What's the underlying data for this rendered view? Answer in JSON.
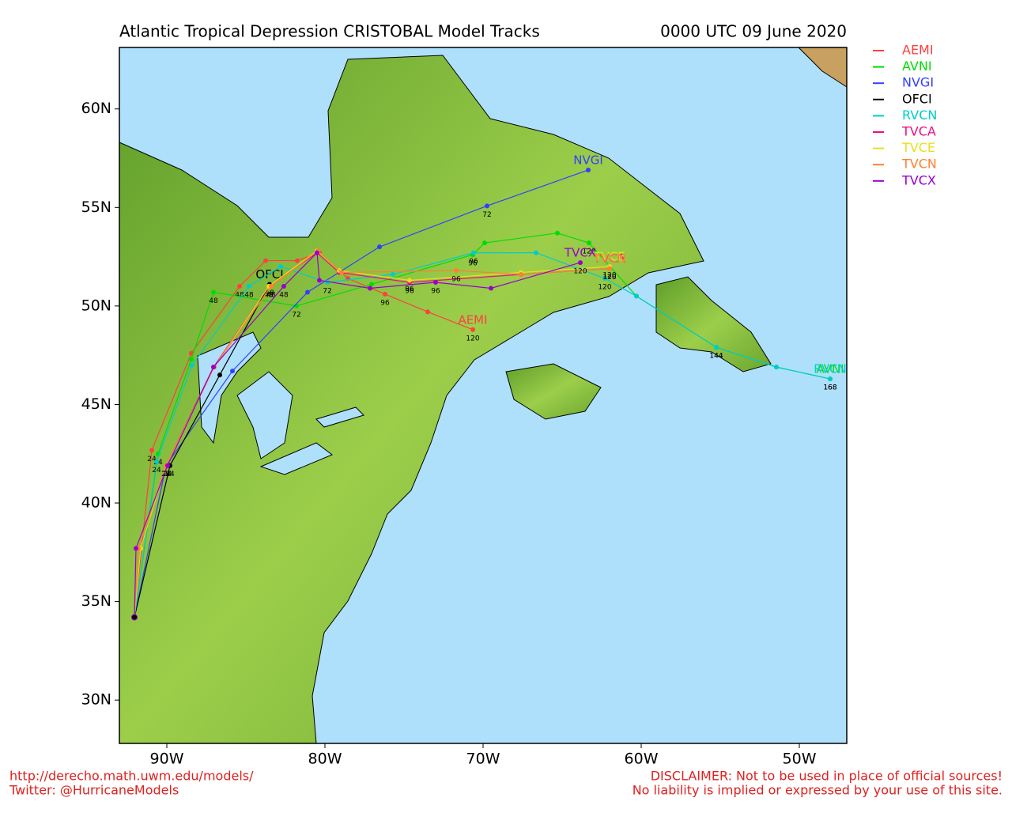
{
  "chart_data": {
    "type": "map",
    "title": "Atlantic Tropical Depression CRISTOBAL Model Tracks",
    "subtitle": "0000 UTC 09 June 2020",
    "xlim": [
      -93,
      -47
    ],
    "ylim": [
      27.8,
      63.12
    ],
    "xticks": [
      {
        "value": -90,
        "label": "90W"
      },
      {
        "value": -80,
        "label": "80W"
      },
      {
        "value": -70,
        "label": "70W"
      },
      {
        "value": -60,
        "label": "60W"
      },
      {
        "value": -50,
        "label": "50W"
      }
    ],
    "yticks": [
      {
        "value": 30,
        "label": "30N"
      },
      {
        "value": 35,
        "label": "35N"
      },
      {
        "value": 40,
        "label": "40N"
      },
      {
        "value": 45,
        "label": "45N"
      },
      {
        "value": 50,
        "label": "50N"
      },
      {
        "value": 55,
        "label": "55N"
      },
      {
        "value": 60,
        "label": "60N"
      }
    ],
    "series": [
      {
        "name": "AEMI",
        "color": "#ff4040",
        "lon": [
          -92.05,
          -90.95,
          -88.45,
          -85.4,
          -83.75,
          -81.75,
          -80.35,
          -78.55,
          -76.2,
          -73.5,
          -70.65
        ],
        "lat": [
          34.2,
          42.68,
          47.6,
          51.0,
          52.3,
          52.3,
          52.7,
          51.4,
          50.6,
          49.7,
          48.8
        ],
        "hours": [
          null,
          24,
          null,
          48,
          null,
          null,
          null,
          null,
          96,
          null,
          120
        ]
      },
      {
        "name": "AVNI",
        "color": "#00dd00",
        "lon": [
          -92.05,
          -90.55,
          -88.45,
          -87.05,
          -81.8,
          -77.05,
          -70.65,
          -69.9,
          -65.3,
          -63.3,
          -60.3,
          -55.25,
          -51.45,
          -48.05
        ],
        "lat": [
          34.2,
          42.5,
          47.3,
          50.7,
          50.0,
          51.1,
          52.6,
          53.2,
          53.7,
          53.2,
          50.5,
          47.9,
          46.9,
          46.3
        ],
        "hours": [
          null,
          24,
          null,
          48,
          72,
          null,
          96,
          null,
          null,
          120,
          null,
          144,
          null,
          168
        ]
      },
      {
        "name": "NVGI",
        "color": "#3040ff",
        "lon": [
          -92.05,
          -90.05,
          -85.85,
          -81.1,
          -76.55,
          -69.75,
          -63.35
        ],
        "lat": [
          34.2,
          41.9,
          46.7,
          50.7,
          53.0,
          55.08,
          56.9
        ],
        "hours": [
          null,
          24,
          null,
          null,
          null,
          72,
          null
        ]
      },
      {
        "name": "OFCI",
        "color": "#000000",
        "lon": [
          -92.05,
          -89.8,
          -86.65,
          -83.5
        ],
        "lat": [
          34.2,
          41.9,
          46.5,
          51.1
        ],
        "hours": [
          null,
          24,
          null,
          48
        ]
      },
      {
        "name": "RVCN",
        "color": "#00cccc",
        "lon": [
          -92.05,
          -90.65,
          -88.4,
          -84.8,
          -82.8,
          -79.85,
          -75.7,
          -70.6,
          -66.65,
          -62.3,
          -60.3,
          -55.25,
          -51.45,
          -48.05
        ],
        "lat": [
          34.2,
          42.1,
          47.0,
          51.0,
          52.0,
          51.2,
          51.6,
          52.7,
          52.7,
          51.4,
          50.5,
          47.9,
          46.9,
          46.3
        ],
        "hours": [
          null,
          24,
          null,
          48,
          null,
          72,
          null,
          96,
          null,
          120,
          null,
          144,
          null,
          168
        ]
      },
      {
        "name": "TVCA",
        "color": "#ee1080",
        "lon": [
          -92.05,
          -91.65,
          -90.05,
          -87.05,
          -83.55,
          -80.5,
          -79.1,
          -74.65,
          -67.6,
          -62.0
        ],
        "lat": [
          34.2,
          37.7,
          41.9,
          46.9,
          51.0,
          52.7,
          51.7,
          51.2,
          51.6,
          51.9
        ],
        "hours": [
          null,
          null,
          24,
          null,
          48,
          null,
          null,
          96,
          null,
          120
        ]
      },
      {
        "name": "TVCE",
        "color": "#e6e020",
        "lon": [
          -92.05,
          -91.65,
          -90.05,
          -87.0,
          -83.55,
          -80.5,
          -79.1,
          -74.65,
          -67.6,
          -62.0
        ],
        "lat": [
          34.2,
          37.7,
          41.9,
          46.9,
          51.0,
          52.8,
          51.8,
          51.3,
          51.7,
          52.0
        ],
        "hours": [
          null,
          null,
          24,
          null,
          48,
          null,
          null,
          96,
          null,
          120
        ]
      },
      {
        "name": "TVCN",
        "color": "#ff8030",
        "lon": [
          -92.05,
          -91.8,
          -90.05,
          -87.0,
          -83.4,
          -80.45,
          -78.95,
          -71.7,
          -67.6,
          -62.0
        ],
        "lat": [
          34.2,
          37.7,
          41.9,
          46.9,
          51.0,
          52.8,
          51.7,
          51.8,
          51.6,
          51.9
        ],
        "hours": [
          null,
          null,
          24,
          null,
          48,
          null,
          null,
          96,
          null,
          120
        ]
      },
      {
        "name": "TVCX",
        "color": "#9900cc",
        "lon": [
          -92.05,
          -91.95,
          -89.95,
          -87.05,
          -82.6,
          -80.5,
          -80.35,
          -77.15,
          -73.0,
          -69.5,
          -63.85
        ],
        "lat": [
          34.2,
          37.7,
          41.9,
          46.9,
          51.0,
          52.7,
          51.3,
          50.9,
          51.2,
          50.9,
          52.2
        ],
        "hours": [
          null,
          null,
          24,
          null,
          48,
          null,
          null,
          null,
          96,
          null,
          120
        ]
      }
    ],
    "footer_left": [
      "http://derecho.math.uwm.edu/models/",
      "Twitter: @HurricaneModels"
    ],
    "footer_right": [
      "DISCLAIMER: Not to be used in place of official sources!",
      "No liability is implied or expressed by your use of this site."
    ]
  }
}
